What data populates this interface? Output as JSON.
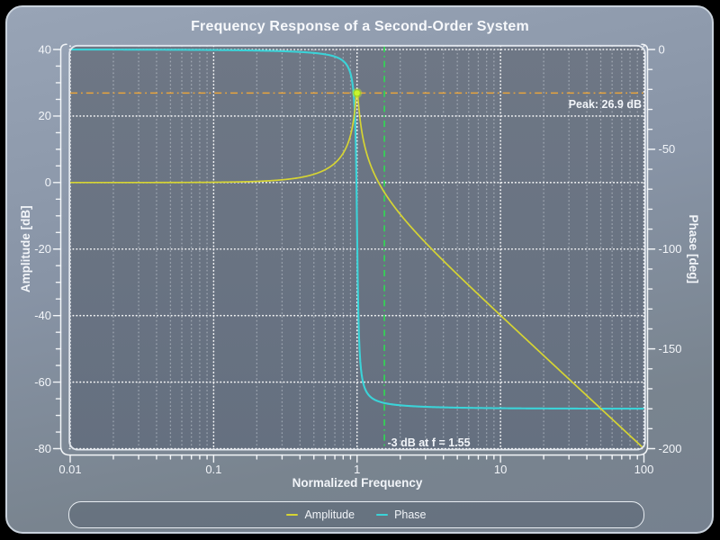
{
  "title": "Frequency Response of a Second-Order System",
  "axes": {
    "x": {
      "label": "Normalized Frequency",
      "scale": "log",
      "min": 0.01,
      "max": 100,
      "tick_values": [
        0.01,
        0.1,
        1,
        10,
        100
      ],
      "tick_labels": [
        "0.01",
        "0.1",
        "1",
        "10",
        "100"
      ]
    },
    "amplitude": {
      "label": "Amplitude [dB]",
      "max": 40,
      "min": -80,
      "ticks": [
        40,
        20,
        0,
        -20,
        -40,
        -60,
        -80
      ],
      "minor_step": 5
    },
    "phase": {
      "label": "Phase [deg]",
      "max": 0,
      "min": -200,
      "ticks": [
        0,
        -50,
        -100,
        -150,
        -200
      ],
      "minor_step": 10
    }
  },
  "chart_data": {
    "type": "line",
    "title": "Frequency Response of a Second-Order System",
    "xlabel": "Normalized Frequency",
    "ylabel_left": "Amplitude [dB]",
    "ylabel_right": "Phase [deg]",
    "x_scale": "log",
    "xlim": [
      0.01,
      100
    ],
    "ylim_left": [
      -80,
      40
    ],
    "ylim_right": [
      -200,
      0
    ],
    "grid": true,
    "legend_position": "bottom",
    "series": [
      {
        "name": "Amplitude",
        "color": "#d6d433",
        "axis": "amplitude",
        "model": {
          "kind": "second_order_lowpass_magnitude_db",
          "f0": 1,
          "q": 22.13
        }
      },
      {
        "name": "Phase",
        "color": "#3bd3d8",
        "axis": "phase",
        "model": {
          "kind": "second_order_lowpass_phase_deg",
          "f0": 1,
          "q": 22.13
        }
      }
    ],
    "samples": {
      "f": [
        0.01,
        0.1,
        0.3,
        0.5,
        0.7,
        0.8,
        0.9,
        0.95,
        0.98,
        0.99,
        1.0,
        1.01,
        1.02,
        1.05,
        1.1,
        1.2,
        1.41,
        1.55,
        2.0,
        3.0,
        5.0,
        10.0,
        30.0,
        100.0
      ],
      "amplitude_db": [
        0.0,
        0.09,
        0.82,
        2.49,
        5.83,
        8.83,
        14.23,
        19.45,
        24.52,
        26.19,
        26.9,
        26.03,
        24.25,
        18.94,
        13.32,
        7.07,
        0.09,
        -3.0,
        -9.55,
        -18.06,
        -27.6,
        -39.91,
        -59.08,
        -80.0
      ],
      "phase_deg": [
        -0.03,
        -0.26,
        -0.85,
        -1.73,
        -3.55,
        -5.74,
        -12.09,
        -23.79,
        -48.24,
        -66.05,
        -90.0,
        -113.73,
        -131.18,
        -155.14,
        -166.67,
        -172.97,
        -176.31,
        -177.14,
        -178.27,
        -178.99,
        -179.46,
        -179.74,
        -179.91,
        -179.97
      ]
    }
  },
  "annotations": {
    "peak": {
      "label": "Peak: 26.9 dB",
      "db": 26.9,
      "f": 1.0,
      "color": "#e9a43c"
    },
    "cutoff": {
      "label": "-3 dB at f = 1.55",
      "db": -3,
      "f": 1.55,
      "color": "#2ce24f"
    }
  },
  "marker": {
    "color": "#c8f42e",
    "f": 1.0,
    "db": 26.9
  },
  "legend": {
    "items": [
      {
        "label": "Amplitude",
        "color": "#d6d433"
      },
      {
        "label": "Phase",
        "color": "#3bd3d8"
      }
    ]
  },
  "colors": {
    "plot_bg_top": "#6e7785",
    "plot_bg_bottom": "#657080",
    "grid_major": "rgba(255,255,255,0.95)",
    "grid_minor": "rgba(235,240,246,0.40)",
    "spine": "#f2f5f8",
    "frame": "#e2e7ee",
    "text": "#f2f5f9"
  }
}
